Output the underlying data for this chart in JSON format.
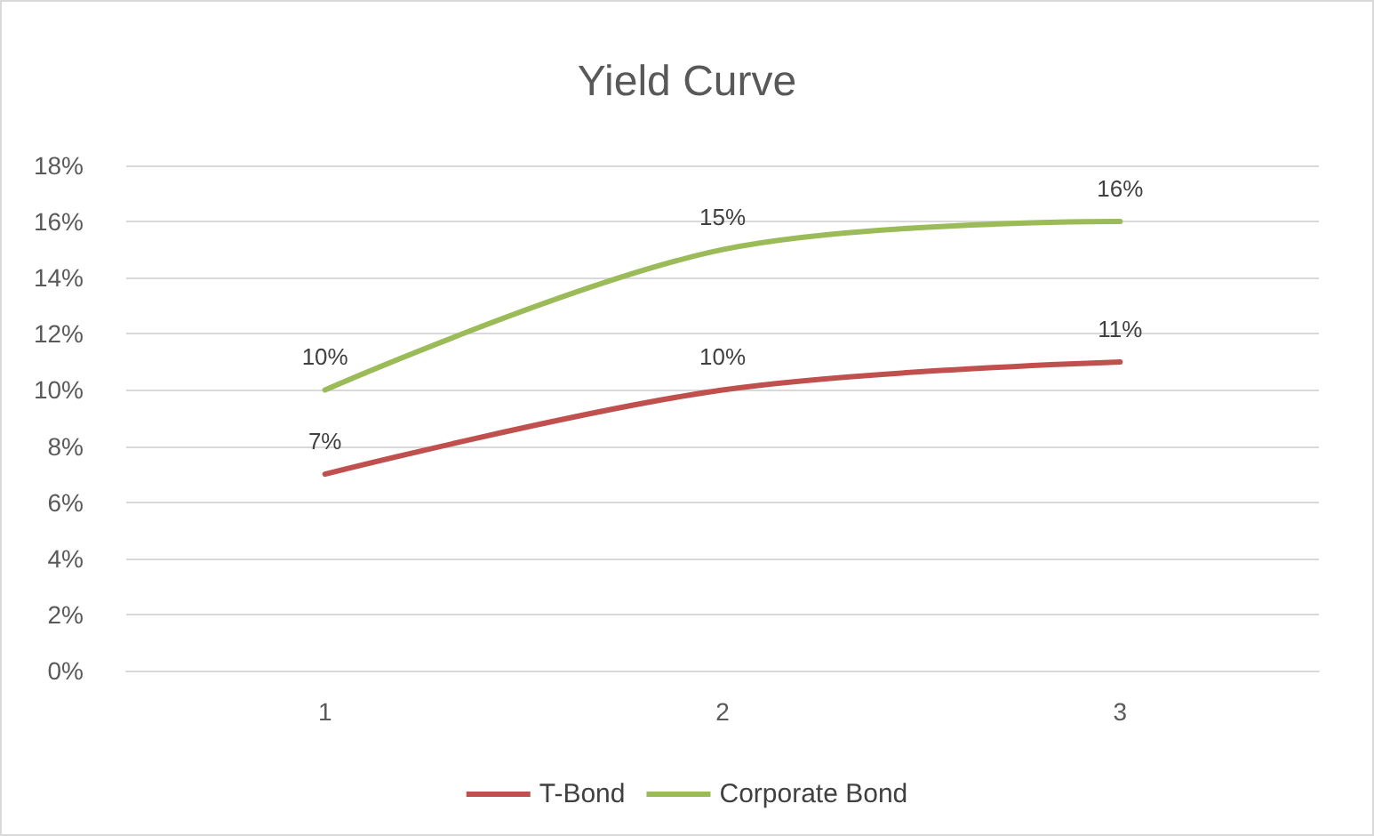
{
  "chart_data": {
    "type": "line",
    "title": "Yield Curve",
    "categories": [
      "1",
      "2",
      "3"
    ],
    "series": [
      {
        "name": "T-Bond",
        "color": "#c0504d",
        "values": [
          7,
          10,
          11
        ],
        "value_labels": [
          "7%",
          "10%",
          "11%"
        ]
      },
      {
        "name": "Corporate Bond",
        "color": "#9bbb59",
        "values": [
          10,
          15,
          16
        ],
        "value_labels": [
          "10%",
          "15%",
          "16%"
        ]
      }
    ],
    "ylim": [
      0,
      18
    ],
    "yticks": [
      {
        "value": 0,
        "label": "0%"
      },
      {
        "value": 2,
        "label": "2%"
      },
      {
        "value": 4,
        "label": "4%"
      },
      {
        "value": 6,
        "label": "6%"
      },
      {
        "value": 8,
        "label": "8%"
      },
      {
        "value": 10,
        "label": "10%"
      },
      {
        "value": 12,
        "label": "12%"
      },
      {
        "value": 14,
        "label": "14%"
      },
      {
        "value": 16,
        "label": "16%"
      },
      {
        "value": 18,
        "label": "18%"
      }
    ],
    "grid": "y",
    "legend": "bottom",
    "marker": "none",
    "line_style": "solid"
  }
}
